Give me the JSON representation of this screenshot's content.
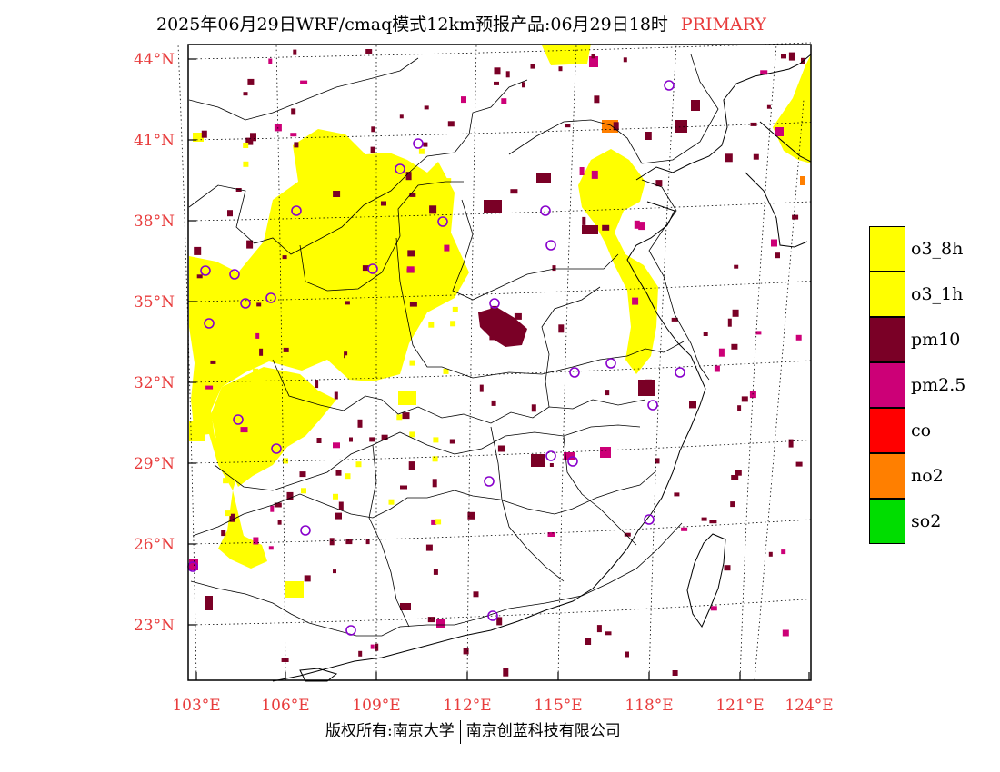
{
  "title": {
    "main": "2025年06月29日WRF/cmaq模式12km预报产品:06月29日18时",
    "tag": "PRIMARY"
  },
  "colors": {
    "axis_label": "#e83c3c",
    "o3_8h": "#ffff00",
    "o3_1h": "#ffff00",
    "pm10": "#7a0026",
    "pm2_5": "#cc0077",
    "co": "#ff0000",
    "no2": "#ff7f00",
    "so2": "#00dd00",
    "site_marker": "#8800cc"
  },
  "map": {
    "lon_range": [
      102.6,
      124.0
    ],
    "lat_range": [
      20.9,
      44.4
    ],
    "lat_labels": [
      "44°N",
      "41°N",
      "38°N",
      "35°N",
      "32°N",
      "29°N",
      "26°N",
      "23°N"
    ],
    "lon_labels": [
      "103°E",
      "106°E",
      "109°E",
      "112°E",
      "115°E",
      "118°E",
      "121°E",
      "124°E"
    ]
  },
  "legend": [
    {
      "key": "o3_8h",
      "label": "o3_8h",
      "color": "#ffff00"
    },
    {
      "key": "o3_1h",
      "label": "o3_1h",
      "color": "#ffff00"
    },
    {
      "key": "pm10",
      "label": "pm10",
      "color": "#7a0026"
    },
    {
      "key": "pm2_5",
      "label": "pm2.5",
      "color": "#cc0077"
    },
    {
      "key": "co",
      "label": "co",
      "color": "#ff0000"
    },
    {
      "key": "no2",
      "label": "no2",
      "color": "#ff7f00"
    },
    {
      "key": "so2",
      "label": "so2",
      "color": "#00dd00"
    }
  ],
  "footer": {
    "left": "版权所有:南京大学",
    "right": "南京创蓝科技有限公司"
  }
}
